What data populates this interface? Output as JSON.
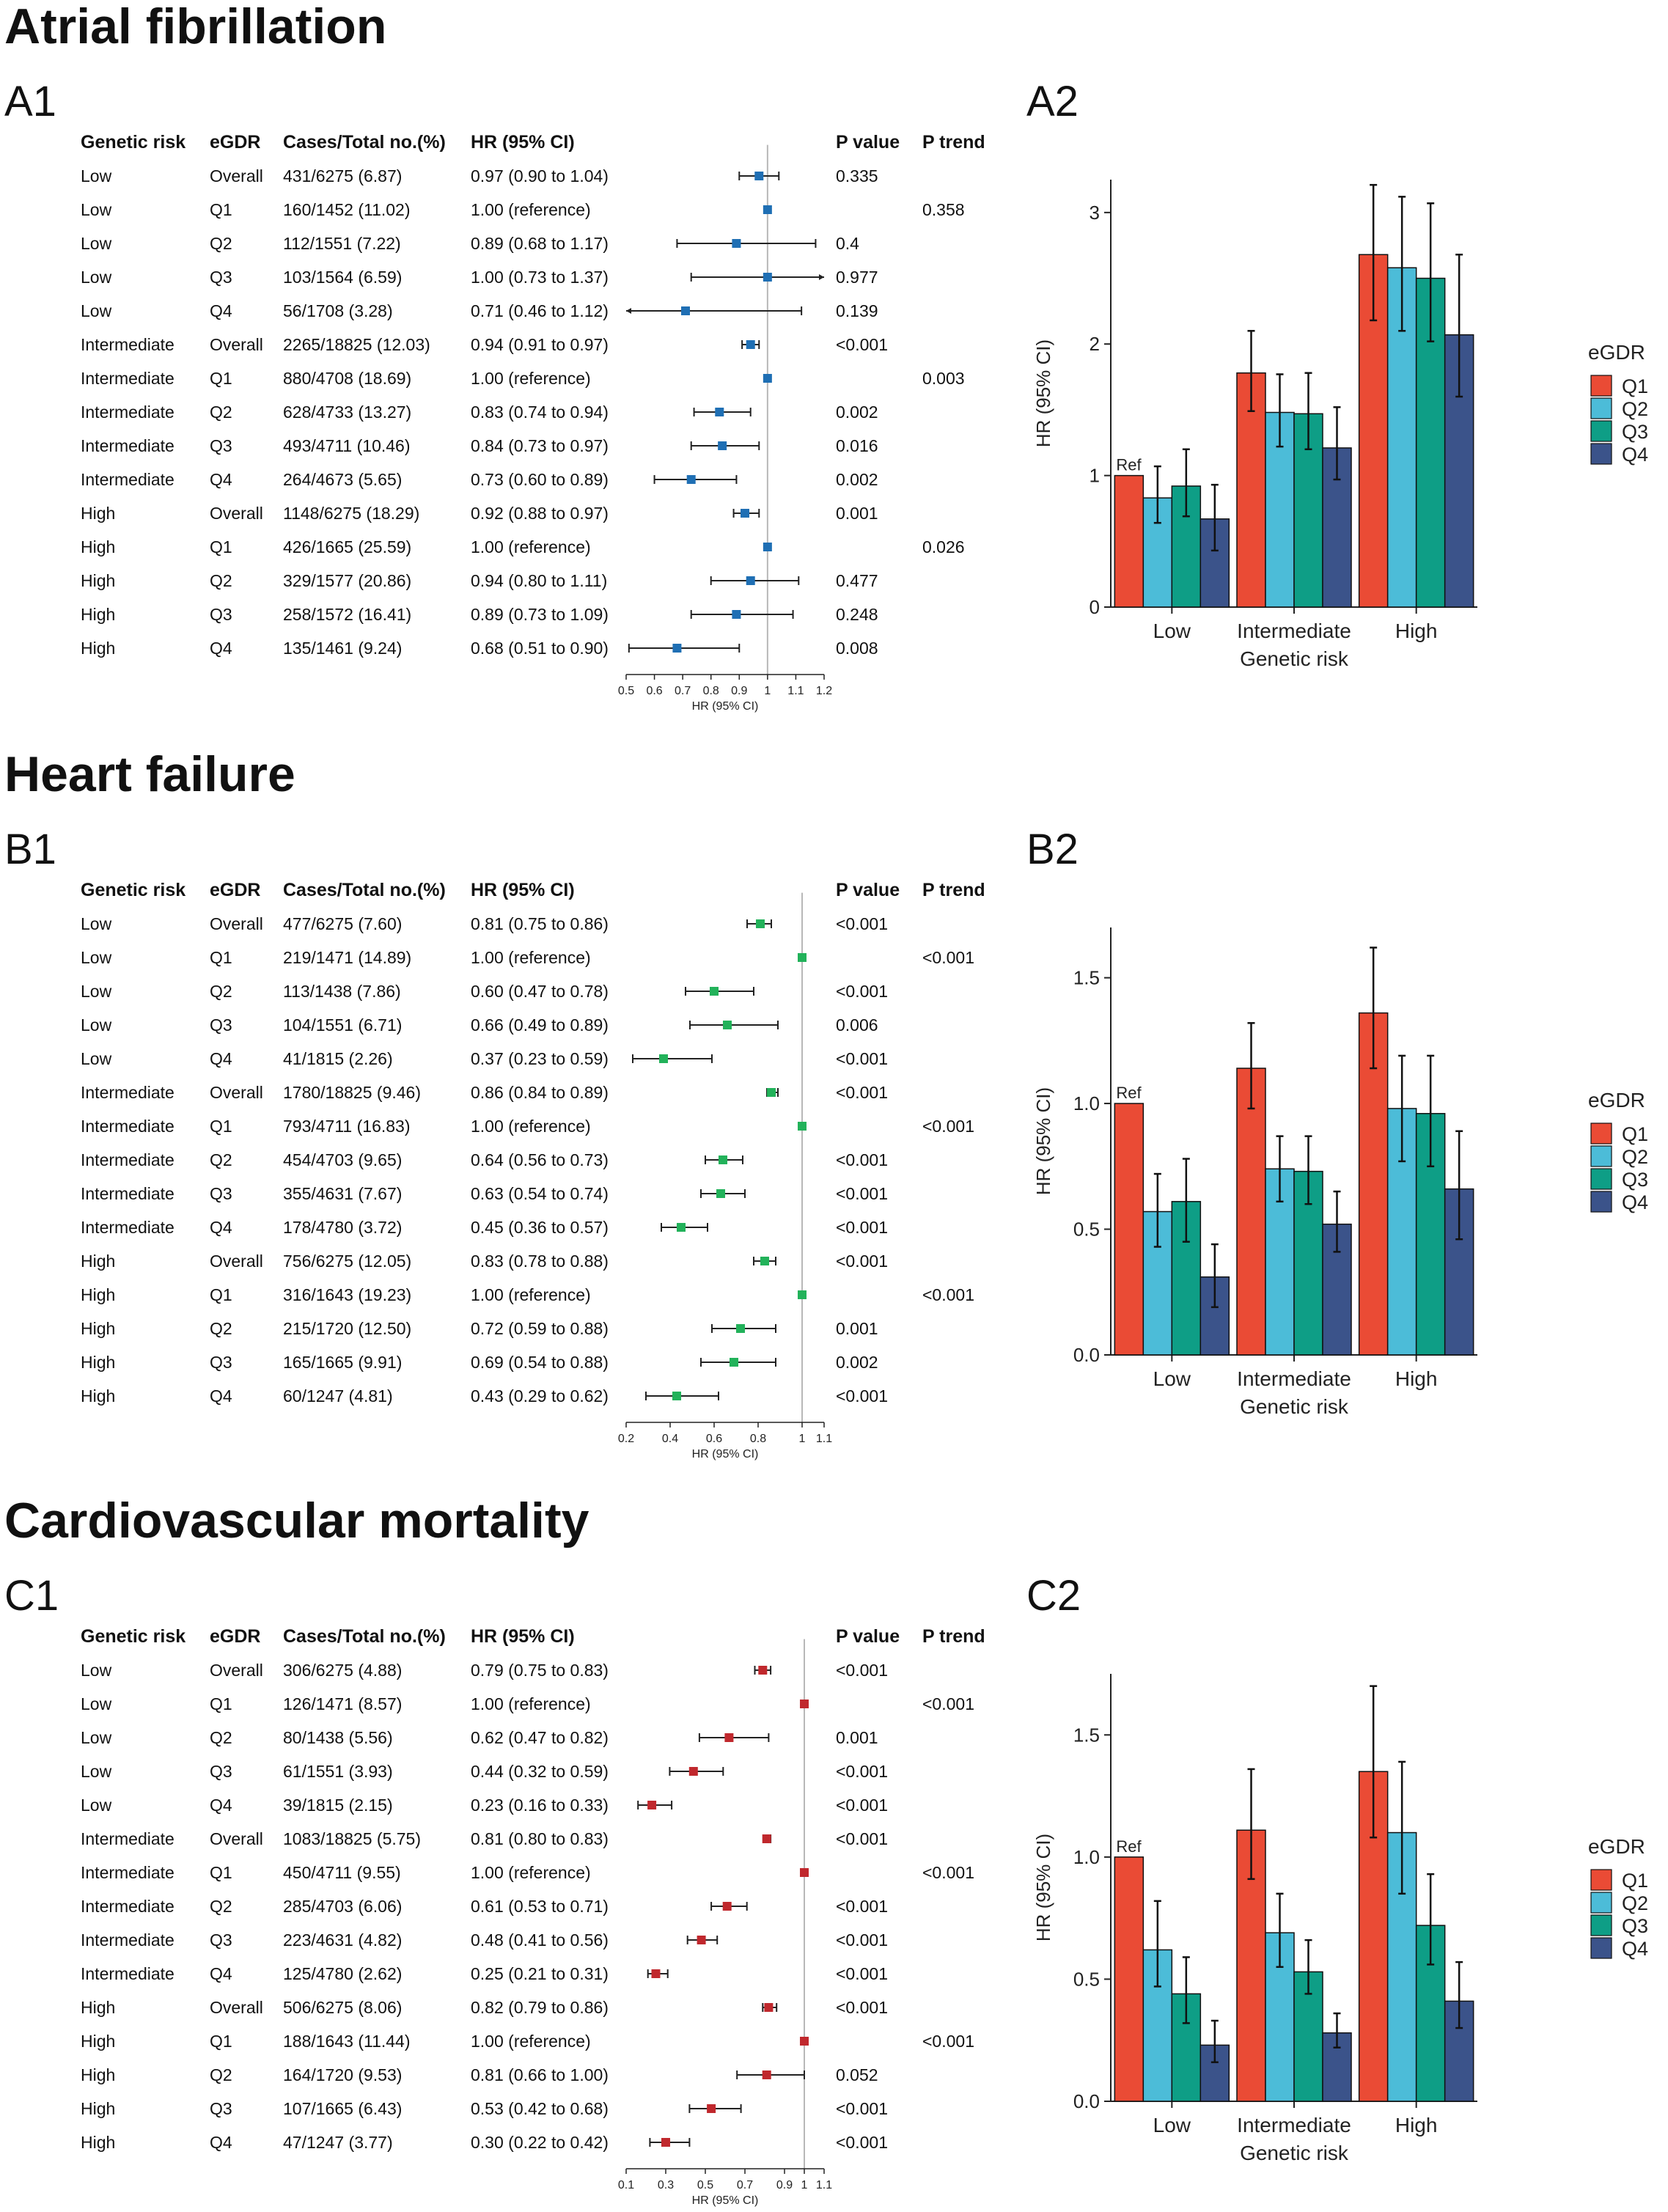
{
  "figure_sections": [
    {
      "title": "Atrial fibrillation",
      "forest_label": "A1",
      "bar_label": "A2"
    },
    {
      "title": "Heart failure",
      "forest_label": "B1",
      "bar_label": "B2"
    },
    {
      "title": "Cardiovascular mortality",
      "forest_label": "C1",
      "bar_label": "C2"
    }
  ],
  "table_headers": [
    "Genetic risk",
    "eGDR",
    "Cases/Total no.(%)",
    "HR (95% CI)",
    "P value",
    "P trend"
  ],
  "colors": {
    "forest_A": "#1f6fb4",
    "forest_B": "#22b25a",
    "forest_C": "#c0282d",
    "Q1": "#ea4b35",
    "Q2": "#4cbcd8",
    "Q3": "#0e9e86",
    "Q4": "#3b538a",
    "refline": "#b8b8b8"
  },
  "chart_data": [
    {
      "type": "forest",
      "title": "Atrial fibrillation",
      "xlabel": "HR (95% CI)",
      "xticks": [
        0.5,
        0.6,
        0.7,
        0.8,
        0.9,
        1,
        1.1,
        1.2
      ],
      "xtick_labels": [
        "0.5",
        "0.6",
        "0.7",
        "0.8",
        "0.9",
        "1",
        "1.1",
        "1.2"
      ],
      "xlim": [
        0.5,
        1.2
      ],
      "ref_value": 1,
      "rows": [
        {
          "genetic_risk": "Low",
          "egdr": "Overall",
          "cases": "431/6275 (6.87)",
          "hr_text": "0.97 (0.90 to 1.04)",
          "p_value": "0.335",
          "p_trend": "",
          "hr": 0.97,
          "lo": 0.9,
          "hi": 1.04
        },
        {
          "genetic_risk": "Low",
          "egdr": "Q1",
          "cases": "160/1452 (11.02)",
          "hr_text": "1.00 (reference)",
          "p_value": "",
          "p_trend": "0.358",
          "hr": 1.0,
          "lo": null,
          "hi": null
        },
        {
          "genetic_risk": "Low",
          "egdr": "Q2",
          "cases": "112/1551 (7.22)",
          "hr_text": "0.89 (0.68 to 1.17)",
          "p_value": "0.4",
          "p_trend": "",
          "hr": 0.89,
          "lo": 0.68,
          "hi": 1.17
        },
        {
          "genetic_risk": "Low",
          "egdr": "Q3",
          "cases": "103/1564 (6.59)",
          "hr_text": "1.00 (0.73 to 1.37)",
          "p_value": "0.977",
          "p_trend": "",
          "hr": 1.0,
          "lo": 0.73,
          "hi": 1.37
        },
        {
          "genetic_risk": "Low",
          "egdr": "Q4",
          "cases": "56/1708 (3.28)",
          "hr_text": "0.71 (0.46 to 1.12)",
          "p_value": "0.139",
          "p_trend": "",
          "hr": 0.71,
          "lo": 0.46,
          "hi": 1.12
        },
        {
          "genetic_risk": "Intermediate",
          "egdr": "Overall",
          "cases": "2265/18825 (12.03)",
          "hr_text": "0.94 (0.91 to 0.97)",
          "p_value": "<0.001",
          "p_trend": "",
          "hr": 0.94,
          "lo": 0.91,
          "hi": 0.97
        },
        {
          "genetic_risk": "Intermediate",
          "egdr": "Q1",
          "cases": "880/4708 (18.69)",
          "hr_text": "1.00 (reference)",
          "p_value": "",
          "p_trend": "0.003",
          "hr": 1.0,
          "lo": null,
          "hi": null
        },
        {
          "genetic_risk": "Intermediate",
          "egdr": "Q2",
          "cases": "628/4733 (13.27)",
          "hr_text": "0.83 (0.74 to 0.94)",
          "p_value": "0.002",
          "p_trend": "",
          "hr": 0.83,
          "lo": 0.74,
          "hi": 0.94
        },
        {
          "genetic_risk": "Intermediate",
          "egdr": "Q3",
          "cases": "493/4711 (10.46)",
          "hr_text": "0.84 (0.73 to 0.97)",
          "p_value": "0.016",
          "p_trend": "",
          "hr": 0.84,
          "lo": 0.73,
          "hi": 0.97
        },
        {
          "genetic_risk": "Intermediate",
          "egdr": "Q4",
          "cases": "264/4673 (5.65)",
          "hr_text": "0.73 (0.60 to 0.89)",
          "p_value": "0.002",
          "p_trend": "",
          "hr": 0.73,
          "lo": 0.6,
          "hi": 0.89
        },
        {
          "genetic_risk": "High",
          "egdr": "Overall",
          "cases": "1148/6275 (18.29)",
          "hr_text": "0.92 (0.88 to 0.97)",
          "p_value": "0.001",
          "p_trend": "",
          "hr": 0.92,
          "lo": 0.88,
          "hi": 0.97
        },
        {
          "genetic_risk": "High",
          "egdr": "Q1",
          "cases": "426/1665 (25.59)",
          "hr_text": "1.00 (reference)",
          "p_value": "",
          "p_trend": "0.026",
          "hr": 1.0,
          "lo": null,
          "hi": null
        },
        {
          "genetic_risk": "High",
          "egdr": "Q2",
          "cases": "329/1577 (20.86)",
          "hr_text": "0.94 (0.80 to 1.11)",
          "p_value": "0.477",
          "p_trend": "",
          "hr": 0.94,
          "lo": 0.8,
          "hi": 1.11
        },
        {
          "genetic_risk": "High",
          "egdr": "Q3",
          "cases": "258/1572 (16.41)",
          "hr_text": "0.89 (0.73 to 1.09)",
          "p_value": "0.248",
          "p_trend": "",
          "hr": 0.89,
          "lo": 0.73,
          "hi": 1.09
        },
        {
          "genetic_risk": "High",
          "egdr": "Q4",
          "cases": "135/1461 (9.24)",
          "hr_text": "0.68 (0.51 to 0.90)",
          "p_value": "0.008",
          "p_trend": "",
          "hr": 0.68,
          "lo": 0.51,
          "hi": 0.9
        }
      ]
    },
    {
      "type": "bar",
      "title": "Atrial fibrillation",
      "categories": [
        "Low",
        "Intermediate",
        "High"
      ],
      "xlabel": "Genetic risk",
      "ylabel": "HR (95% CI)",
      "ylim": [
        0,
        3.25
      ],
      "yticks": [
        0,
        1,
        2,
        3
      ],
      "ytick_labels": [
        "0",
        "1",
        "2",
        "3"
      ],
      "legend_title": "eGDR",
      "ref_label": "Ref",
      "series": [
        {
          "name": "Q1",
          "values": [
            1.0,
            1.78,
            2.68
          ],
          "lo": [
            null,
            1.49,
            2.18
          ],
          "hi": [
            null,
            2.1,
            3.21
          ]
        },
        {
          "name": "Q2",
          "values": [
            0.83,
            1.48,
            2.58
          ],
          "lo": [
            0.64,
            1.22,
            2.1
          ],
          "hi": [
            1.07,
            1.77,
            3.12
          ]
        },
        {
          "name": "Q3",
          "values": [
            0.92,
            1.47,
            2.5
          ],
          "lo": [
            0.69,
            1.2,
            2.02
          ],
          "hi": [
            1.2,
            1.78,
            3.07
          ]
        },
        {
          "name": "Q4",
          "values": [
            0.67,
            1.21,
            2.07
          ],
          "lo": [
            0.43,
            0.97,
            1.6
          ],
          "hi": [
            0.93,
            1.52,
            2.68
          ]
        }
      ]
    },
    {
      "type": "forest",
      "title": "Heart failure",
      "xlabel": "HR (95% CI)",
      "xticks": [
        0.2,
        0.4,
        0.6,
        0.8,
        1,
        1.1
      ],
      "xtick_labels": [
        "0.2",
        "0.4",
        "0.6",
        "0.8",
        "1",
        "1.1"
      ],
      "xlim": [
        0.2,
        1.1
      ],
      "ref_value": 1,
      "rows": [
        {
          "genetic_risk": "Low",
          "egdr": "Overall",
          "cases": "477/6275 (7.60)",
          "hr_text": "0.81 (0.75 to 0.86)",
          "p_value": "<0.001",
          "p_trend": "",
          "hr": 0.81,
          "lo": 0.75,
          "hi": 0.86
        },
        {
          "genetic_risk": "Low",
          "egdr": "Q1",
          "cases": "219/1471 (14.89)",
          "hr_text": "1.00 (reference)",
          "p_value": "",
          "p_trend": "<0.001",
          "hr": 1.0,
          "lo": null,
          "hi": null
        },
        {
          "genetic_risk": "Low",
          "egdr": "Q2",
          "cases": "113/1438 (7.86)",
          "hr_text": "0.60 (0.47 to 0.78)",
          "p_value": "<0.001",
          "p_trend": "",
          "hr": 0.6,
          "lo": 0.47,
          "hi": 0.78
        },
        {
          "genetic_risk": "Low",
          "egdr": "Q3",
          "cases": "104/1551 (6.71)",
          "hr_text": "0.66 (0.49 to 0.89)",
          "p_value": "0.006",
          "p_trend": "",
          "hr": 0.66,
          "lo": 0.49,
          "hi": 0.89
        },
        {
          "genetic_risk": "Low",
          "egdr": "Q4",
          "cases": "41/1815 (2.26)",
          "hr_text": "0.37 (0.23 to 0.59)",
          "p_value": "<0.001",
          "p_trend": "",
          "hr": 0.37,
          "lo": 0.23,
          "hi": 0.59
        },
        {
          "genetic_risk": "Intermediate",
          "egdr": "Overall",
          "cases": "1780/18825 (9.46)",
          "hr_text": "0.86 (0.84 to 0.89)",
          "p_value": "<0.001",
          "p_trend": "",
          "hr": 0.86,
          "lo": 0.84,
          "hi": 0.89
        },
        {
          "genetic_risk": "Intermediate",
          "egdr": "Q1",
          "cases": "793/4711 (16.83)",
          "hr_text": "1.00 (reference)",
          "p_value": "",
          "p_trend": "<0.001",
          "hr": 1.0,
          "lo": null,
          "hi": null
        },
        {
          "genetic_risk": "Intermediate",
          "egdr": "Q2",
          "cases": "454/4703 (9.65)",
          "hr_text": "0.64 (0.56 to 0.73)",
          "p_value": "<0.001",
          "p_trend": "",
          "hr": 0.64,
          "lo": 0.56,
          "hi": 0.73
        },
        {
          "genetic_risk": "Intermediate",
          "egdr": "Q3",
          "cases": "355/4631 (7.67)",
          "hr_text": "0.63 (0.54 to 0.74)",
          "p_value": "<0.001",
          "p_trend": "",
          "hr": 0.63,
          "lo": 0.54,
          "hi": 0.74
        },
        {
          "genetic_risk": "Intermediate",
          "egdr": "Q4",
          "cases": "178/4780 (3.72)",
          "hr_text": "0.45 (0.36 to 0.57)",
          "p_value": "<0.001",
          "p_trend": "",
          "hr": 0.45,
          "lo": 0.36,
          "hi": 0.57
        },
        {
          "genetic_risk": "High",
          "egdr": "Overall",
          "cases": "756/6275 (12.05)",
          "hr_text": "0.83 (0.78 to 0.88)",
          "p_value": "<0.001",
          "p_trend": "",
          "hr": 0.83,
          "lo": 0.78,
          "hi": 0.88
        },
        {
          "genetic_risk": "High",
          "egdr": "Q1",
          "cases": "316/1643 (19.23)",
          "hr_text": "1.00 (reference)",
          "p_value": "",
          "p_trend": "<0.001",
          "hr": 1.0,
          "lo": null,
          "hi": null
        },
        {
          "genetic_risk": "High",
          "egdr": "Q2",
          "cases": "215/1720 (12.50)",
          "hr_text": "0.72 (0.59 to 0.88)",
          "p_value": "0.001",
          "p_trend": "",
          "hr": 0.72,
          "lo": 0.59,
          "hi": 0.88
        },
        {
          "genetic_risk": "High",
          "egdr": "Q3",
          "cases": "165/1665 (9.91)",
          "hr_text": "0.69 (0.54 to 0.88)",
          "p_value": "0.002",
          "p_trend": "",
          "hr": 0.69,
          "lo": 0.54,
          "hi": 0.88
        },
        {
          "genetic_risk": "High",
          "egdr": "Q4",
          "cases": "60/1247 (4.81)",
          "hr_text": "0.43 (0.29 to 0.62)",
          "p_value": "<0.001",
          "p_trend": "",
          "hr": 0.43,
          "lo": 0.29,
          "hi": 0.62
        }
      ]
    },
    {
      "type": "bar",
      "title": "Heart failure",
      "categories": [
        "Low",
        "Intermediate",
        "High"
      ],
      "xlabel": "Genetic risk",
      "ylabel": "HR (95% CI)",
      "ylim": [
        0,
        1.7
      ],
      "yticks": [
        0,
        0.5,
        1,
        1.5
      ],
      "ytick_labels": [
        "0.0",
        "0.5",
        "1.0",
        "1.5"
      ],
      "legend_title": "eGDR",
      "ref_label": "Ref",
      "series": [
        {
          "name": "Q1",
          "values": [
            1.0,
            1.14,
            1.36
          ],
          "lo": [
            null,
            0.98,
            1.14
          ],
          "hi": [
            null,
            1.32,
            1.62
          ]
        },
        {
          "name": "Q2",
          "values": [
            0.57,
            0.74,
            0.98
          ],
          "lo": [
            0.43,
            0.61,
            0.77
          ],
          "hi": [
            0.72,
            0.87,
            1.19
          ]
        },
        {
          "name": "Q3",
          "values": [
            0.61,
            0.73,
            0.96
          ],
          "lo": [
            0.45,
            0.6,
            0.75
          ],
          "hi": [
            0.78,
            0.87,
            1.19
          ]
        },
        {
          "name": "Q4",
          "values": [
            0.31,
            0.52,
            0.66
          ],
          "lo": [
            0.19,
            0.41,
            0.46
          ],
          "hi": [
            0.44,
            0.65,
            0.89
          ]
        }
      ]
    },
    {
      "type": "forest",
      "title": "Cardiovascular mortality",
      "xlabel": "HR (95% CI)",
      "xticks": [
        0.1,
        0.3,
        0.5,
        0.7,
        0.9,
        1,
        1.1
      ],
      "xtick_labels": [
        "0.1",
        "0.3",
        "0.5",
        "0.7",
        "0.9",
        "1",
        "1.1"
      ],
      "xlim": [
        0.1,
        1.1
      ],
      "ref_value": 1,
      "rows": [
        {
          "genetic_risk": "Low",
          "egdr": "Overall",
          "cases": "306/6275 (4.88)",
          "hr_text": "0.79 (0.75 to 0.83)",
          "p_value": "<0.001",
          "p_trend": "",
          "hr": 0.79,
          "lo": 0.75,
          "hi": 0.83
        },
        {
          "genetic_risk": "Low",
          "egdr": "Q1",
          "cases": "126/1471 (8.57)",
          "hr_text": "1.00 (reference)",
          "p_value": "",
          "p_trend": "<0.001",
          "hr": 1.0,
          "lo": null,
          "hi": null
        },
        {
          "genetic_risk": "Low",
          "egdr": "Q2",
          "cases": "80/1438 (5.56)",
          "hr_text": "0.62 (0.47 to 0.82)",
          "p_value": "0.001",
          "p_trend": "",
          "hr": 0.62,
          "lo": 0.47,
          "hi": 0.82
        },
        {
          "genetic_risk": "Low",
          "egdr": "Q3",
          "cases": "61/1551 (3.93)",
          "hr_text": "0.44 (0.32 to 0.59)",
          "p_value": "<0.001",
          "p_trend": "",
          "hr": 0.44,
          "lo": 0.32,
          "hi": 0.59
        },
        {
          "genetic_risk": "Low",
          "egdr": "Q4",
          "cases": "39/1815 (2.15)",
          "hr_text": "0.23 (0.16 to 0.33)",
          "p_value": "<0.001",
          "p_trend": "",
          "hr": 0.23,
          "lo": 0.16,
          "hi": 0.33
        },
        {
          "genetic_risk": "Intermediate",
          "egdr": "Overall",
          "cases": "1083/18825 (5.75)",
          "hr_text": "0.81 (0.80 to 0.83)",
          "p_value": "<0.001",
          "p_trend": "",
          "hr": 0.81,
          "lo": 0.8,
          "hi": 0.83
        },
        {
          "genetic_risk": "Intermediate",
          "egdr": "Q1",
          "cases": "450/4711 (9.55)",
          "hr_text": "1.00 (reference)",
          "p_value": "",
          "p_trend": "<0.001",
          "hr": 1.0,
          "lo": null,
          "hi": null
        },
        {
          "genetic_risk": "Intermediate",
          "egdr": "Q2",
          "cases": "285/4703 (6.06)",
          "hr_text": "0.61 (0.53 to 0.71)",
          "p_value": "<0.001",
          "p_trend": "",
          "hr": 0.61,
          "lo": 0.53,
          "hi": 0.71
        },
        {
          "genetic_risk": "Intermediate",
          "egdr": "Q3",
          "cases": "223/4631 (4.82)",
          "hr_text": "0.48 (0.41 to 0.56)",
          "p_value": "<0.001",
          "p_trend": "",
          "hr": 0.48,
          "lo": 0.41,
          "hi": 0.56
        },
        {
          "genetic_risk": "Intermediate",
          "egdr": "Q4",
          "cases": "125/4780 (2.62)",
          "hr_text": "0.25 (0.21 to 0.31)",
          "p_value": "<0.001",
          "p_trend": "",
          "hr": 0.25,
          "lo": 0.21,
          "hi": 0.31
        },
        {
          "genetic_risk": "High",
          "egdr": "Overall",
          "cases": "506/6275 (8.06)",
          "hr_text": "0.82 (0.79 to 0.86)",
          "p_value": "<0.001",
          "p_trend": "",
          "hr": 0.82,
          "lo": 0.79,
          "hi": 0.86
        },
        {
          "genetic_risk": "High",
          "egdr": "Q1",
          "cases": "188/1643 (11.44)",
          "hr_text": "1.00 (reference)",
          "p_value": "",
          "p_trend": "<0.001",
          "hr": 1.0,
          "lo": null,
          "hi": null
        },
        {
          "genetic_risk": "High",
          "egdr": "Q2",
          "cases": "164/1720 (9.53)",
          "hr_text": "0.81 (0.66 to 1.00)",
          "p_value": "0.052",
          "p_trend": "",
          "hr": 0.81,
          "lo": 0.66,
          "hi": 1.0
        },
        {
          "genetic_risk": "High",
          "egdr": "Q3",
          "cases": "107/1665 (6.43)",
          "hr_text": "0.53 (0.42 to 0.68)",
          "p_value": "<0.001",
          "p_trend": "",
          "hr": 0.53,
          "lo": 0.42,
          "hi": 0.68
        },
        {
          "genetic_risk": "High",
          "egdr": "Q4",
          "cases": "47/1247 (3.77)",
          "hr_text": "0.30 (0.22 to 0.42)",
          "p_value": "<0.001",
          "p_trend": "",
          "hr": 0.3,
          "lo": 0.22,
          "hi": 0.42
        }
      ]
    },
    {
      "type": "bar",
      "title": "Cardiovascular mortality",
      "categories": [
        "Low",
        "Intermediate",
        "High"
      ],
      "xlabel": "Genetic risk",
      "ylabel": "HR (95% CI)",
      "ylim": [
        0,
        1.75
      ],
      "yticks": [
        0,
        0.5,
        1,
        1.5
      ],
      "ytick_labels": [
        "0.0",
        "0.5",
        "1.0",
        "1.5"
      ],
      "legend_title": "eGDR",
      "ref_label": "Ref",
      "series": [
        {
          "name": "Q1",
          "values": [
            1.0,
            1.11,
            1.35
          ],
          "lo": [
            null,
            0.91,
            1.08
          ],
          "hi": [
            null,
            1.36,
            1.7
          ]
        },
        {
          "name": "Q2",
          "values": [
            0.62,
            0.69,
            1.1
          ],
          "lo": [
            0.47,
            0.55,
            0.85
          ],
          "hi": [
            0.82,
            0.85,
            1.39
          ]
        },
        {
          "name": "Q3",
          "values": [
            0.44,
            0.53,
            0.72
          ],
          "lo": [
            0.32,
            0.44,
            0.56
          ],
          "hi": [
            0.59,
            0.66,
            0.93
          ]
        },
        {
          "name": "Q4",
          "values": [
            0.23,
            0.28,
            0.41
          ],
          "lo": [
            0.16,
            0.22,
            0.3
          ],
          "hi": [
            0.33,
            0.36,
            0.57
          ]
        }
      ]
    }
  ]
}
